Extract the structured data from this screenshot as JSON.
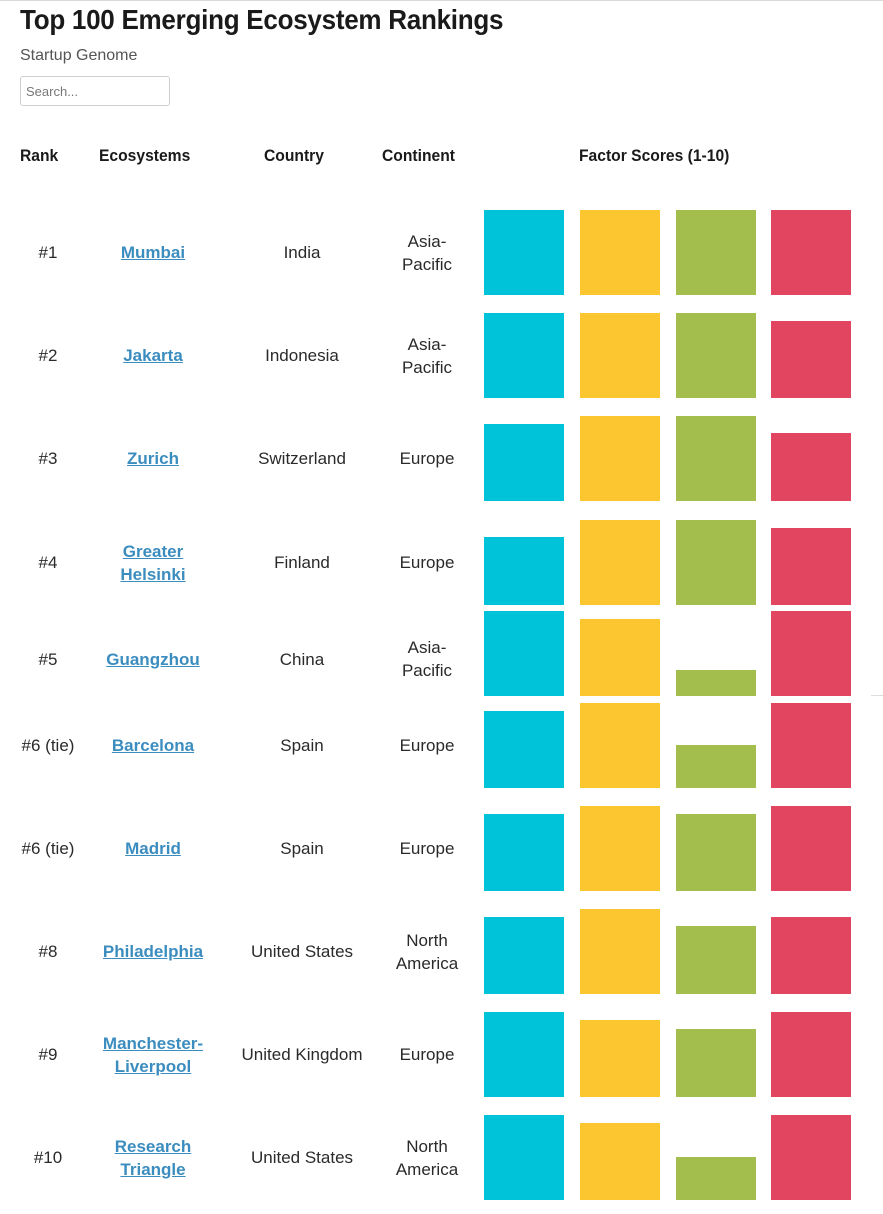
{
  "title": "Top 100 Emerging Ecosystem Rankings",
  "subtitle": "Startup Genome",
  "search": {
    "placeholder": "Search..."
  },
  "headers": {
    "rank": "Rank",
    "ecosystems": "Ecosystems",
    "country": "Country",
    "continent": "Continent",
    "factor_scores": "Factor Scores (1-10)"
  },
  "colors": [
    "#00c2d8",
    "#fcc631",
    "#a3be4c",
    "#e24560"
  ],
  "chart_data": {
    "type": "table",
    "ylim": [
      0,
      10
    ],
    "categories": [
      "#1",
      "#2",
      "#3",
      "#4",
      "#5",
      "#6 (tie)",
      "#6 (tie)",
      "#8",
      "#9",
      "#10"
    ],
    "rows": [
      {
        "rank": "#1",
        "ecosystem": "Mumbai",
        "country": "India",
        "continent": "Asia-Pacific",
        "scores": [
          10,
          10,
          10,
          10
        ]
      },
      {
        "rank": "#2",
        "ecosystem": "Jakarta",
        "country": "Indonesia",
        "continent": "Asia-Pacific",
        "scores": [
          10,
          10,
          10,
          9
        ]
      },
      {
        "rank": "#3",
        "ecosystem": "Zurich",
        "country": "Switzerland",
        "continent": "Europe",
        "scores": [
          9,
          10,
          10,
          8
        ]
      },
      {
        "rank": "#4",
        "ecosystem": "Greater Helsinki",
        "country": "Finland",
        "continent": "Europe",
        "scores": [
          8,
          10,
          10,
          9
        ]
      },
      {
        "rank": "#5",
        "ecosystem": "Guangzhou",
        "country": "China",
        "continent": "Asia-Pacific",
        "scores": [
          10,
          9,
          3,
          10
        ]
      },
      {
        "rank": "#6 (tie)",
        "ecosystem": "Barcelona",
        "country": "Spain",
        "continent": "Europe",
        "scores": [
          9,
          10,
          5,
          10
        ]
      },
      {
        "rank": "#6 (tie)",
        "ecosystem": "Madrid",
        "country": "Spain",
        "continent": "Europe",
        "scores": [
          9,
          10,
          9,
          10
        ]
      },
      {
        "rank": "#8",
        "ecosystem": "Philadelphia",
        "country": "United States",
        "continent": "North America",
        "scores": [
          9,
          10,
          8,
          9
        ]
      },
      {
        "rank": "#9",
        "ecosystem": "Manchester-Liverpool",
        "country": "United Kingdom",
        "continent": "Europe",
        "scores": [
          10,
          9,
          8,
          10
        ]
      },
      {
        "rank": "#10",
        "ecosystem": "Research Triangle",
        "country": "United States",
        "continent": "North America",
        "scores": [
          10,
          9,
          5,
          10
        ]
      }
    ]
  }
}
